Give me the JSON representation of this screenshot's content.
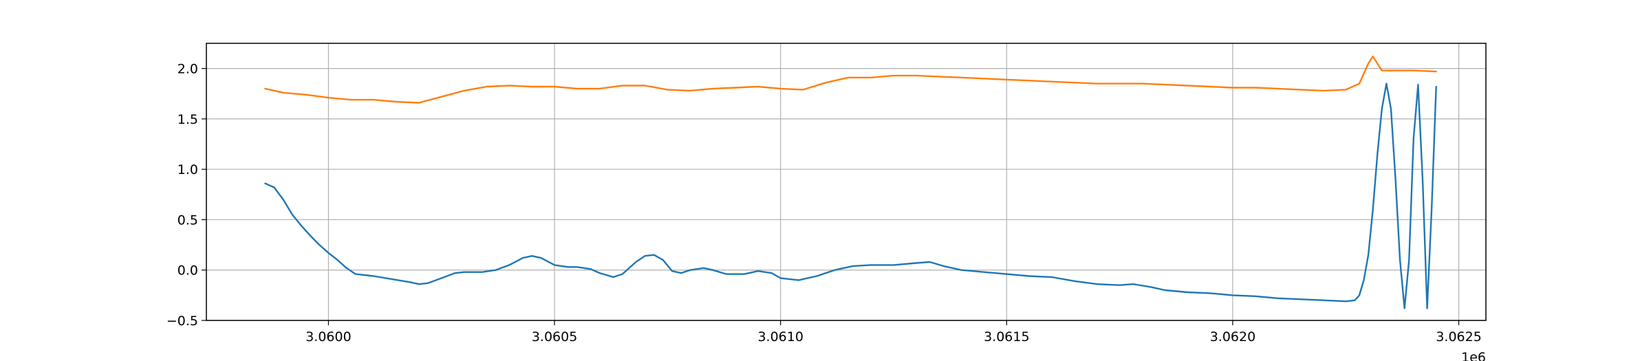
{
  "chart_data": {
    "type": "line",
    "title": "",
    "xlabel": "",
    "ylabel": "",
    "x_offset_label": "1e6",
    "xlim": [
      3.05973,
      3.06256
    ],
    "ylim": [
      -0.5,
      2.25
    ],
    "x_ticks": [
      3.06,
      3.0605,
      3.061,
      3.0615,
      3.062,
      3.0625
    ],
    "x_tick_labels": [
      "3.0600",
      "3.0605",
      "3.0610",
      "3.0615",
      "3.0620",
      "3.0625"
    ],
    "y_ticks": [
      -0.5,
      0.0,
      0.5,
      1.0,
      1.5,
      2.0
    ],
    "y_tick_labels": [
      "−0.5",
      "0.0",
      "0.5",
      "1.0",
      "1.5",
      "2.0"
    ],
    "grid": true,
    "legend": "none",
    "series": [
      {
        "color": "#1f77b4",
        "points": [
          [
            3.05986,
            0.86
          ],
          [
            3.05988,
            0.82
          ],
          [
            3.0599,
            0.7
          ],
          [
            3.05992,
            0.55
          ],
          [
            3.05994,
            0.44
          ],
          [
            3.05996,
            0.34
          ],
          [
            3.05998,
            0.25
          ],
          [
            3.06,
            0.17
          ],
          [
            3.06002,
            0.1
          ],
          [
            3.06004,
            0.02
          ],
          [
            3.06006,
            -0.04
          ],
          [
            3.0601,
            -0.06
          ],
          [
            3.06014,
            -0.09
          ],
          [
            3.06018,
            -0.12
          ],
          [
            3.0602,
            -0.14
          ],
          [
            3.06022,
            -0.13
          ],
          [
            3.06025,
            -0.08
          ],
          [
            3.06028,
            -0.03
          ],
          [
            3.0603,
            -0.02
          ],
          [
            3.06034,
            -0.02
          ],
          [
            3.06037,
            0.0
          ],
          [
            3.0604,
            0.05
          ],
          [
            3.06043,
            0.12
          ],
          [
            3.06045,
            0.14
          ],
          [
            3.06047,
            0.12
          ],
          [
            3.0605,
            0.05
          ],
          [
            3.06053,
            0.03
          ],
          [
            3.06055,
            0.03
          ],
          [
            3.06058,
            0.01
          ],
          [
            3.0606,
            -0.03
          ],
          [
            3.06063,
            -0.07
          ],
          [
            3.06065,
            -0.04
          ],
          [
            3.06068,
            0.08
          ],
          [
            3.0607,
            0.14
          ],
          [
            3.06072,
            0.15
          ],
          [
            3.06074,
            0.1
          ],
          [
            3.06076,
            -0.01
          ],
          [
            3.06078,
            -0.03
          ],
          [
            3.0608,
            0.0
          ],
          [
            3.06083,
            0.02
          ],
          [
            3.06085,
            0.0
          ],
          [
            3.06088,
            -0.04
          ],
          [
            3.06092,
            -0.04
          ],
          [
            3.06095,
            -0.01
          ],
          [
            3.06098,
            -0.03
          ],
          [
            3.061,
            -0.08
          ],
          [
            3.06104,
            -0.1
          ],
          [
            3.06108,
            -0.06
          ],
          [
            3.06112,
            0.0
          ],
          [
            3.06116,
            0.04
          ],
          [
            3.0612,
            0.05
          ],
          [
            3.06125,
            0.05
          ],
          [
            3.0613,
            0.07
          ],
          [
            3.06133,
            0.08
          ],
          [
            3.06136,
            0.04
          ],
          [
            3.0614,
            0.0
          ],
          [
            3.06145,
            -0.02
          ],
          [
            3.0615,
            -0.04
          ],
          [
            3.06155,
            -0.06
          ],
          [
            3.0616,
            -0.07
          ],
          [
            3.06165,
            -0.11
          ],
          [
            3.0617,
            -0.14
          ],
          [
            3.06175,
            -0.15
          ],
          [
            3.06178,
            -0.14
          ],
          [
            3.06182,
            -0.17
          ],
          [
            3.06185,
            -0.2
          ],
          [
            3.0619,
            -0.22
          ],
          [
            3.06195,
            -0.23
          ],
          [
            3.062,
            -0.25
          ],
          [
            3.06205,
            -0.26
          ],
          [
            3.0621,
            -0.28
          ],
          [
            3.06215,
            -0.29
          ],
          [
            3.0622,
            -0.3
          ],
          [
            3.06225,
            -0.31
          ],
          [
            3.06227,
            -0.3
          ],
          [
            3.06228,
            -0.25
          ],
          [
            3.06229,
            -0.1
          ],
          [
            3.0623,
            0.15
          ],
          [
            3.06231,
            0.6
          ],
          [
            3.06232,
            1.15
          ],
          [
            3.06233,
            1.6
          ],
          [
            3.06234,
            1.85
          ],
          [
            3.06235,
            1.6
          ],
          [
            3.06236,
            0.9
          ],
          [
            3.06237,
            0.1
          ],
          [
            3.06238,
            -0.38
          ],
          [
            3.06239,
            0.1
          ],
          [
            3.0624,
            1.3
          ],
          [
            3.06241,
            1.84
          ],
          [
            3.06242,
            0.9
          ],
          [
            3.06243,
            -0.38
          ],
          [
            3.06244,
            0.6
          ],
          [
            3.06245,
            1.82
          ]
        ]
      },
      {
        "color": "#ff7f0e",
        "points": [
          [
            3.05986,
            1.8
          ],
          [
            3.0599,
            1.76
          ],
          [
            3.05995,
            1.74
          ],
          [
            3.06,
            1.71
          ],
          [
            3.06005,
            1.69
          ],
          [
            3.0601,
            1.69
          ],
          [
            3.06015,
            1.67
          ],
          [
            3.0602,
            1.66
          ],
          [
            3.06025,
            1.72
          ],
          [
            3.0603,
            1.78
          ],
          [
            3.06035,
            1.82
          ],
          [
            3.0604,
            1.83
          ],
          [
            3.06045,
            1.82
          ],
          [
            3.0605,
            1.82
          ],
          [
            3.06055,
            1.8
          ],
          [
            3.0606,
            1.8
          ],
          [
            3.06065,
            1.83
          ],
          [
            3.0607,
            1.83
          ],
          [
            3.06075,
            1.79
          ],
          [
            3.0608,
            1.78
          ],
          [
            3.06085,
            1.8
          ],
          [
            3.0609,
            1.81
          ],
          [
            3.06095,
            1.82
          ],
          [
            3.061,
            1.8
          ],
          [
            3.06105,
            1.79
          ],
          [
            3.0611,
            1.86
          ],
          [
            3.06115,
            1.91
          ],
          [
            3.0612,
            1.91
          ],
          [
            3.06125,
            1.93
          ],
          [
            3.0613,
            1.93
          ],
          [
            3.06135,
            1.92
          ],
          [
            3.0614,
            1.91
          ],
          [
            3.06145,
            1.9
          ],
          [
            3.0615,
            1.89
          ],
          [
            3.06155,
            1.88
          ],
          [
            3.0616,
            1.87
          ],
          [
            3.06165,
            1.86
          ],
          [
            3.0617,
            1.85
          ],
          [
            3.06175,
            1.85
          ],
          [
            3.0618,
            1.85
          ],
          [
            3.06185,
            1.84
          ],
          [
            3.0619,
            1.83
          ],
          [
            3.06195,
            1.82
          ],
          [
            3.062,
            1.81
          ],
          [
            3.06205,
            1.81
          ],
          [
            3.0621,
            1.8
          ],
          [
            3.06215,
            1.79
          ],
          [
            3.0622,
            1.78
          ],
          [
            3.06225,
            1.79
          ],
          [
            3.06228,
            1.85
          ],
          [
            3.0623,
            2.05
          ],
          [
            3.06231,
            2.12
          ],
          [
            3.06233,
            1.98
          ],
          [
            3.06236,
            1.98
          ],
          [
            3.0624,
            1.98
          ],
          [
            3.06245,
            1.97
          ]
        ]
      }
    ]
  }
}
